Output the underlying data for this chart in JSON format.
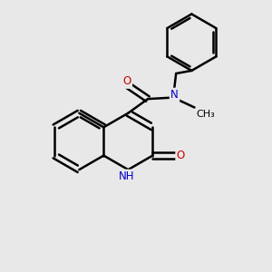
{
  "bg_color": "#e8e8e8",
  "bond_color": "#000000",
  "bond_width": 1.8,
  "atom_colors": {
    "N": "#0000cc",
    "O": "#cc0000",
    "C": "#000000"
  },
  "font_size": 8.5,
  "figsize": [
    3.0,
    3.0
  ],
  "dpi": 100,
  "xlim": [
    0,
    10
  ],
  "ylim": [
    0,
    10
  ]
}
